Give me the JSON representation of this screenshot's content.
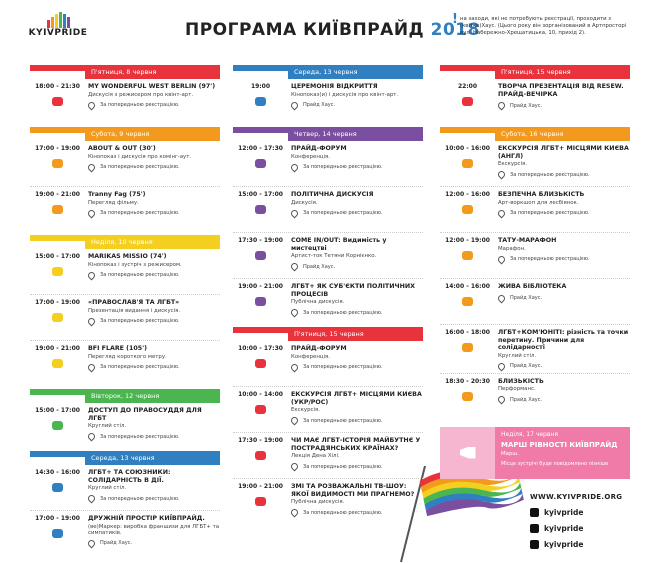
{
  "header": {
    "logo": "KYIVPRIDE",
    "title": "ПРОГРАМА КИЇВПРАЙД",
    "year": "2018",
    "note": [
      "на заходи, які не потребують реєстрації, проходити з",
      "(квітка)Хаус. (Цього року він зорганізований в Артпросторі",
      "вул. Набережно-Хрещатицька, 10, прихід 2)."
    ]
  },
  "columns": [
    [
      {
        "day": "П'ятниця, 8 червня",
        "color": "#e8323c",
        "events": [
          {
            "time": "18:00 - 21:30",
            "title": "MY WONDERFUL WEST BERLIN (97')",
            "description": "Дискусія з режисером про квінт-арт.",
            "location": "За попередньою реєстрацією."
          }
        ]
      },
      {
        "day": "Субота, 9 червня",
        "color": "#f39a1e",
        "events": [
          {
            "time": "17:00 - 19:00",
            "title": "ABOUT & OUT (30')",
            "description": "Кінопоказ і дискусія про комінг-аут.",
            "location": "За попередньою реєстрацією."
          },
          {
            "time": "19:00 - 21:00",
            "title": "Tranny Fag (75')",
            "description": "Перегляд фільму.",
            "location": "За попередньою реєстрацією."
          }
        ]
      },
      {
        "day": "Неділя, 10 червня",
        "color": "#f5cf1f",
        "events": [
          {
            "time": "15:00 - 17:00",
            "title": "MARIKAS MISSIO (74')",
            "description": "Кінопоказ і зустріч з режисером.",
            "location": "За попередньою реєстрацією."
          },
          {
            "time": "17:00 - 19:00",
            "title": "«ПРАВОСЛАВ'Я ТА ЛГБТ»",
            "description": "Презентація видання і дискусія.",
            "location": "За попередньою реєстрацією."
          },
          {
            "time": "19:00 - 21:00",
            "title": "BFI FLARE (105')",
            "description": "Перегляд короткого метру.",
            "location": "За попередньою реєстрацією."
          }
        ]
      },
      {
        "day": "Вівторок, 12 червня",
        "color": "#4bb550",
        "events": [
          {
            "time": "15:00 - 17:00",
            "title": "ДОСТУП ДО ПРАВОСУДДЯ ДЛЯ ЛГБТ",
            "description": "Круглий стіл.",
            "location": "За попередньою реєстрацією."
          }
        ]
      },
      {
        "day": "Середа, 13 червня",
        "color": "#2f7fc1",
        "events": [
          {
            "time": "14:30 - 16:00",
            "title": "ЛГБТ+ ТА СОЮЗНИКИ: СОЛІДАРНІСТЬ В ДІЇ.",
            "description": "Круглий стіл.",
            "location": "За попередньою реєстрацією."
          },
          {
            "time": "17:00 - 19:00",
            "title": "ДРУЖНІЙ ПРОСТІР КИЇВПРАЙД.",
            "description": "(ве)Маркер: виробка франшизи для ЛГБТ+ та симпатиків.",
            "location": "Прайд Хаус."
          }
        ]
      }
    ],
    [
      {
        "day": "Середа, 13 червня",
        "color": "#2f7fc1",
        "events": [
          {
            "time": "19:00",
            "title": "ЦЕРЕМОНІЯ ВІДКРИТТЯ",
            "description": "Кінопоказ(и) і дискусія про квінт-арт.",
            "location": "Прайд Хаус."
          }
        ]
      },
      {
        "day": "Четвер, 14 червня",
        "color": "#7a4fa0",
        "events": [
          {
            "time": "12:00 - 17:30",
            "title": "ПРАЙД-ФОРУМ",
            "description": "Конференція.",
            "location": "За попередньою реєстрацією."
          },
          {
            "time": "15:00 - 17:00",
            "title": "ПОЛІТИЧНА ДИСКУСІЯ",
            "description": "Дискусія.",
            "location": "За попередньою реєстрацією."
          },
          {
            "time": "17:30 - 19:00",
            "title": "COME IN/OUT: Видимість у мистецтві",
            "description": "Артист-ток Тетяни Корнієнко.",
            "location": "Прайд Хаус."
          },
          {
            "time": "19:00 - 21:00",
            "title": "ЛГБТ+ ЯК СУБ'ЄКТИ ПОЛІТИЧНИХ ПРОЦЕСІВ",
            "description": "Публічна дискусія.",
            "location": "За попередньою реєстрацією."
          }
        ]
      },
      {
        "day": "П'ятниця, 15 червня",
        "color": "#e8323c",
        "events": [
          {
            "time": "10:00 - 17:30",
            "title": "ПРАЙД-ФОРУМ",
            "description": "Конференція.",
            "location": "За попередньою реєстрацією."
          },
          {
            "time": "10:00 - 14:00",
            "title": "ЕКСКУРСІЯ ЛГБТ+ МІСЦЯМИ КИЄВА (УКР/РОС)",
            "description": "Екскурсія.",
            "location": "За попередньою реєстрацією."
          },
          {
            "time": "17:30 - 19:00",
            "title": "ЧИ МАЄ ЛГБТ-ІСТОРІЯ МАЙБУТНЄ У ПОСТРАДЯНСЬКИХ КРАЇНАХ?",
            "description": "Лекція Дена Хілі.",
            "location": "За попередньою реєстрацією."
          },
          {
            "time": "19:00 - 21:00",
            "title": "ЗМІ ТА РОЗВАЖАЛЬНІ ТВ-ШОУ: ЯКОЇ ВИДИМОСТІ МИ ПРАГНЕМО?",
            "description": "Публічна дискусія.",
            "location": "За попередньою реєстрацією."
          }
        ]
      }
    ],
    [
      {
        "day": "П'ятниця, 15 червня",
        "color": "#e8323c",
        "events": [
          {
            "time": "22:00",
            "title": "ТВОРЧА ПРЕЗЕНТАЦІЯ ВІД RESEW. ПРАЙД-ВЕЧІРКА",
            "location": "Прайд Хаус."
          }
        ]
      },
      {
        "day": "Субота, 16 червня",
        "color": "#f39a1e",
        "events": [
          {
            "time": "10:00 - 16:00",
            "title": "ЕКСКУРСІЯ ЛГБТ+ МІСЦЯМИ КИЄВА (АНГЛ)",
            "description": "Екскурсія.",
            "location": "За попередньою реєстрацією."
          },
          {
            "time": "12:00 - 16:00",
            "title": "БЕЗПЕЧНА БЛИЗЬКІСТЬ",
            "description": "Арт-воркшоп для лесбіянок.",
            "location": "За попередньою реєстрацією."
          },
          {
            "time": "12:00 - 19:00",
            "title": "ТАТУ-МАРАФОН",
            "description": "Марафон.",
            "location": "За попередньою реєстрацією."
          },
          {
            "time": "14:00 - 16:00",
            "title": "ЖИВА БІБЛІОТЕКА",
            "location": "Прайд Хаус."
          },
          {
            "time": "16:00 - 18:00",
            "title": "ЛГБТ+КОМ'ЮНІТІ: різність та точки перетину. Причини для солідарності",
            "description": "Круглий стіл.",
            "location": "Прайд Хаус."
          },
          {
            "time": "18:30 - 20:30",
            "title": "БЛИЗЬКІСТЬ",
            "description": "Перформанс.",
            "location": "Прайд Хаус."
          }
        ]
      }
    ]
  ],
  "march": {
    "day": "Неділя, 17 червня",
    "title": "МАРШ РІВНОСТІ КИЇВПРАЙД",
    "description": "Марш.",
    "location": "Місце зустрічі буде повідомлено пізніше"
  },
  "footer": {
    "website": "WWW.KYIVPRIDE.ORG",
    "social": [
      "kyivpride",
      "kyivpride",
      "kyivpride"
    ]
  }
}
